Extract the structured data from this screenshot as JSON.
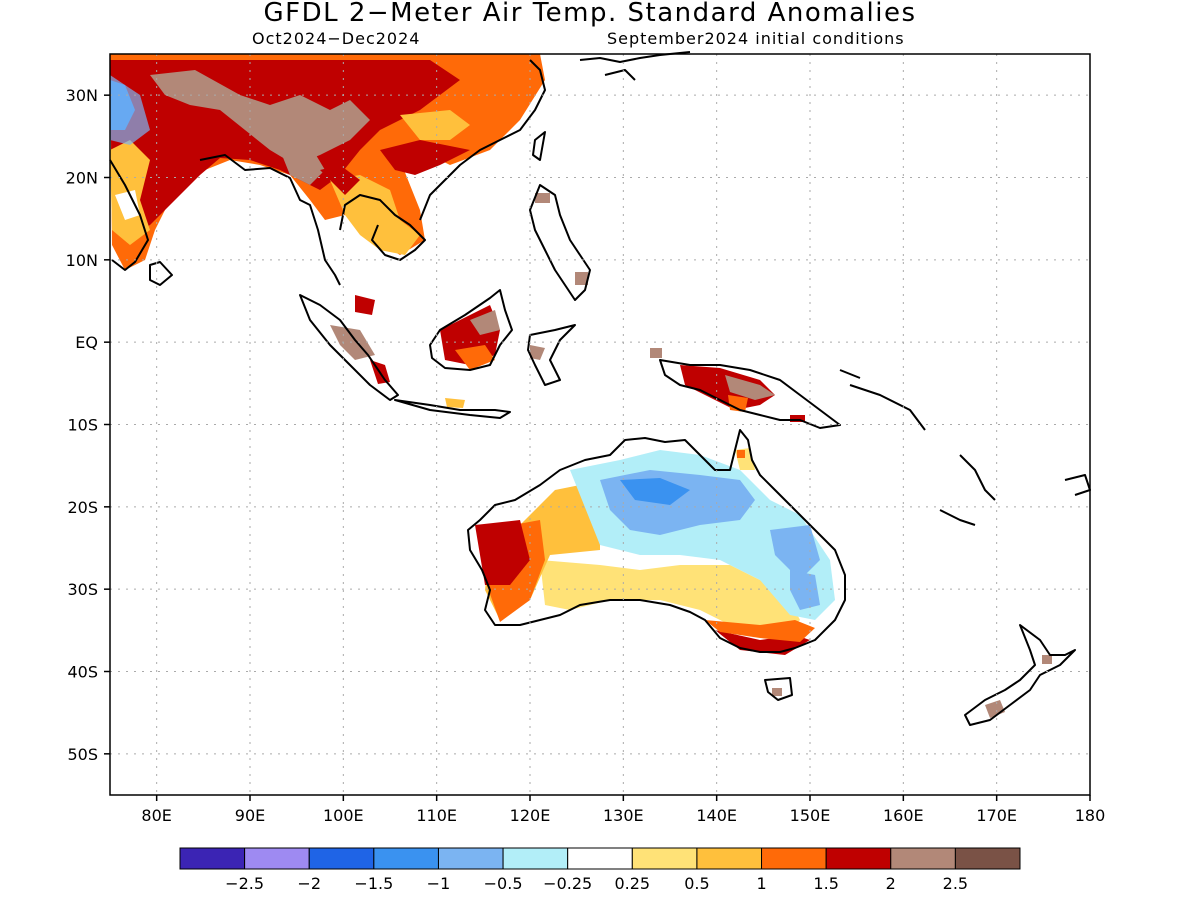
{
  "title": "GFDL 2−Meter Air Temp. Standard Anomalies",
  "period": "Oct2024−Dec2024",
  "initial_conditions": "September2024 initial conditions",
  "map": {
    "lon_range": [
      75,
      180
    ],
    "lat_range": [
      -55,
      35
    ],
    "lon_ticks": [
      {
        "value": 80,
        "label": "80E"
      },
      {
        "value": 90,
        "label": "90E"
      },
      {
        "value": 100,
        "label": "100E"
      },
      {
        "value": 110,
        "label": "110E"
      },
      {
        "value": 120,
        "label": "120E"
      },
      {
        "value": 130,
        "label": "130E"
      },
      {
        "value": 140,
        "label": "140E"
      },
      {
        "value": 150,
        "label": "150E"
      },
      {
        "value": 160,
        "label": "160E"
      },
      {
        "value": 170,
        "label": "170E"
      },
      {
        "value": 180,
        "label": "180"
      }
    ],
    "lat_ticks": [
      {
        "value": 30,
        "label": "30N"
      },
      {
        "value": 20,
        "label": "20N"
      },
      {
        "value": 10,
        "label": "10N"
      },
      {
        "value": 0,
        "label": "EQ"
      },
      {
        "value": -10,
        "label": "10S"
      },
      {
        "value": -20,
        "label": "20S"
      },
      {
        "value": -30,
        "label": "30S"
      },
      {
        "value": -40,
        "label": "40S"
      },
      {
        "value": -50,
        "label": "50S"
      }
    ],
    "grid": true
  },
  "colorbar": {
    "colors": [
      "#3b24b4",
      "#9e8af2",
      "#1f64e6",
      "#3a92f0",
      "#7bb4f2",
      "#b2eef8",
      "#ffffff",
      "#ffe277",
      "#ffc03c",
      "#ff6a08",
      "#bf0000",
      "#b28878",
      "#7a5246"
    ],
    "labels": [
      "−2.5",
      "−2",
      "−1.5",
      "−1",
      "−0.5",
      "−0.25",
      "0.25",
      "0.5",
      "1",
      "1.5",
      "2",
      "2.5"
    ]
  },
  "anomaly_colors": {
    "deep_red": "#bf0000",
    "orange": "#ff6a08",
    "light_orange": "#ffc03c",
    "yellow": "#ffe277",
    "brown": "#b28878",
    "light_blue": "#b2eef8",
    "mid_blue": "#7bb4f2",
    "blue": "#3a92f0"
  }
}
